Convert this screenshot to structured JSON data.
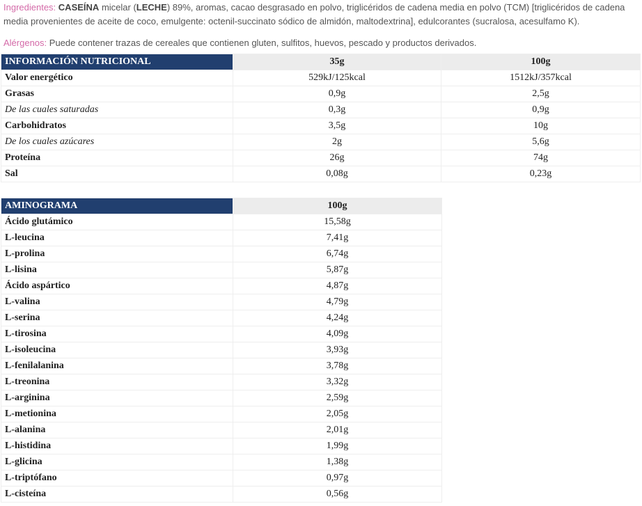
{
  "ingredients": {
    "label": "Ingredientes:",
    "parts": [
      "CASEÍNA",
      "micelar (",
      "LECHE",
      ") 89%, aromas, cacao desgrasado en polvo, triglicéridos de cadena media en polvo (TCM) [triglicéridos de cadena media provenientes de aceite de coco, emulgente: octenil-succinato sódico de almidón, maltodextrina], edulcorantes (sucralosa, acesulfamo K)."
    ]
  },
  "allergens": {
    "label": "Alérgenos:",
    "text": "Puede contener trazas de cereales que contienen gluten, sulfitos, huevos, pescado y productos derivados."
  },
  "nutrition": {
    "header": [
      "INFORMACIÓN NUTRICIONAL",
      "35g",
      "100g"
    ],
    "rows": [
      [
        "Valor energético",
        "529kJ/125kcal",
        "1512kJ/357kcal"
      ],
      [
        "Grasas",
        "0,9g",
        "2,5g"
      ],
      [
        "De las cuales saturadas",
        "0,3g",
        "0,9g"
      ],
      [
        "Carbohidratos",
        "3,5g",
        "10g"
      ],
      [
        "De los cuales azúcares",
        "2g",
        "5,6g"
      ],
      [
        "Proteína",
        "26g",
        "74g"
      ],
      [
        "Sal",
        "0,08g",
        "0,23g"
      ]
    ]
  },
  "aminogram": {
    "header": [
      "AMINOGRAMA",
      "100g"
    ],
    "rows": [
      [
        "Ácido glutámico",
        "15,58g"
      ],
      [
        "L-leucina",
        "7,41g"
      ],
      [
        "L-prolina",
        "6,74g"
      ],
      [
        "L-lisina",
        "5,87g"
      ],
      [
        "Ácido aspártico",
        "4,87g"
      ],
      [
        "L-valina",
        "4,79g"
      ],
      [
        "L-serina",
        "4,24g"
      ],
      [
        "L-tirosina",
        "4,09g"
      ],
      [
        "L-isoleucina",
        "3,93g"
      ],
      [
        "L-fenilalanina",
        "3,78g"
      ],
      [
        "L-treonina",
        "3,32g"
      ],
      [
        "L-arginina",
        "2,59g"
      ],
      [
        "L-metionina",
        "2,05g"
      ],
      [
        "L-alanina",
        "2,01g"
      ],
      [
        "L-histidina",
        "1,99g"
      ],
      [
        "L-glicina",
        "1,38g"
      ],
      [
        "L-triptófano",
        "0,97g"
      ],
      [
        "L-cisteína",
        "0,56g"
      ]
    ]
  }
}
